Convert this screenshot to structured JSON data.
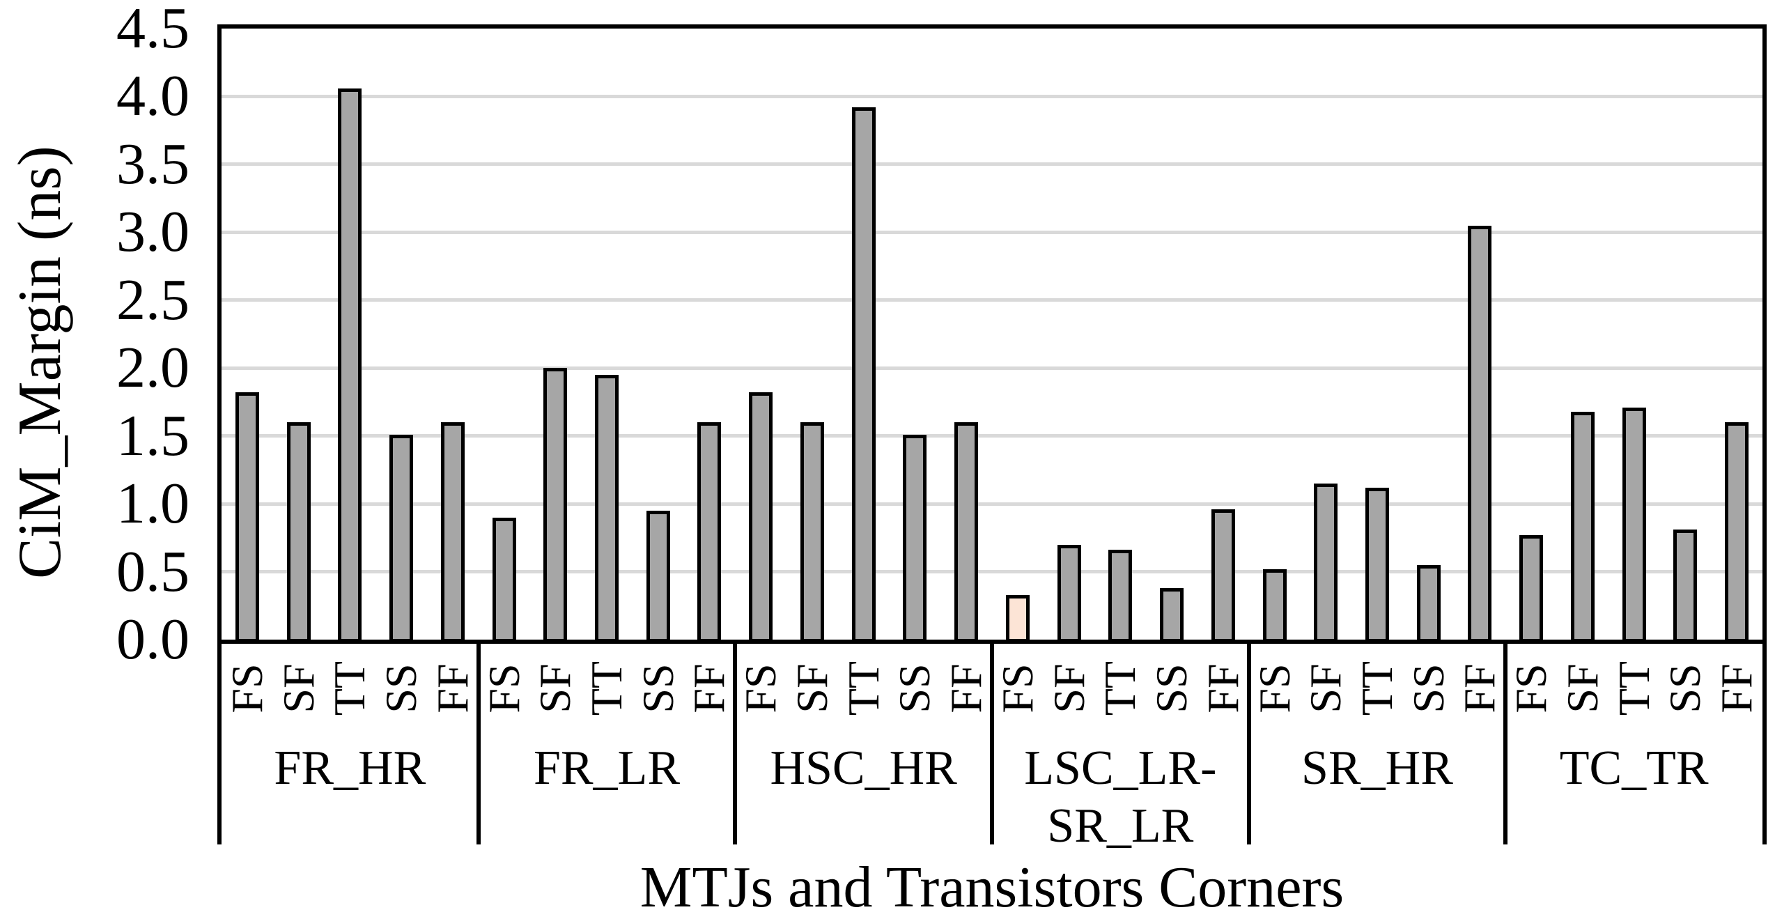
{
  "chart_data": {
    "type": "bar",
    "title": "",
    "xlabel": "MTJs and Transistors Corners",
    "ylabel": "CiM_Margin (ns)",
    "ylim": [
      0,
      4.5
    ],
    "ytick_step": 0.5,
    "ytick_labels": [
      "0.0",
      "0.5",
      "1.0",
      "1.5",
      "2.0",
      "2.5",
      "3.0",
      "3.5",
      "4.0",
      "4.5"
    ],
    "grid": true,
    "legend": "none",
    "corners": [
      "FS",
      "SF",
      "TT",
      "SS",
      "FF"
    ],
    "categories": [
      "FR_HR",
      "FR_LR",
      "HSC_HR",
      "LSC_LR-SR_LR",
      "SR_HR",
      "TC_TR"
    ],
    "group_display_labels": [
      "FR_HR",
      "FR_LR",
      "HSC_HR",
      "LSC_LR-\nSR_LR",
      "SR_HR",
      "TC_TR"
    ],
    "series": [
      {
        "name": "FR_HR",
        "values": [
          1.82,
          1.6,
          4.06,
          1.51,
          1.6
        ]
      },
      {
        "name": "FR_LR",
        "values": [
          0.9,
          2.0,
          1.95,
          0.95,
          1.6
        ]
      },
      {
        "name": "HSC_HR",
        "values": [
          1.82,
          1.6,
          3.92,
          1.51,
          1.6
        ]
      },
      {
        "name": "LSC_LR-SR_LR",
        "values": [
          0.33,
          0.7,
          0.66,
          0.38,
          0.96
        ]
      },
      {
        "name": "SR_HR",
        "values": [
          0.52,
          1.15,
          1.12,
          0.55,
          3.05
        ]
      },
      {
        "name": "TC_TR",
        "values": [
          0.77,
          1.68,
          1.71,
          0.81,
          1.6
        ]
      }
    ],
    "highlight": {
      "group_index": 3,
      "corner_index": 0,
      "note": "single light-peach bar, all others gray"
    },
    "colors": {
      "bar_fill": "#A6A6A6",
      "highlight_fill": "#FCE4D6",
      "bar_border": "#000000",
      "gridline": "#D9D9D9",
      "axis": "#000000",
      "background": "#FFFFFF"
    }
  }
}
